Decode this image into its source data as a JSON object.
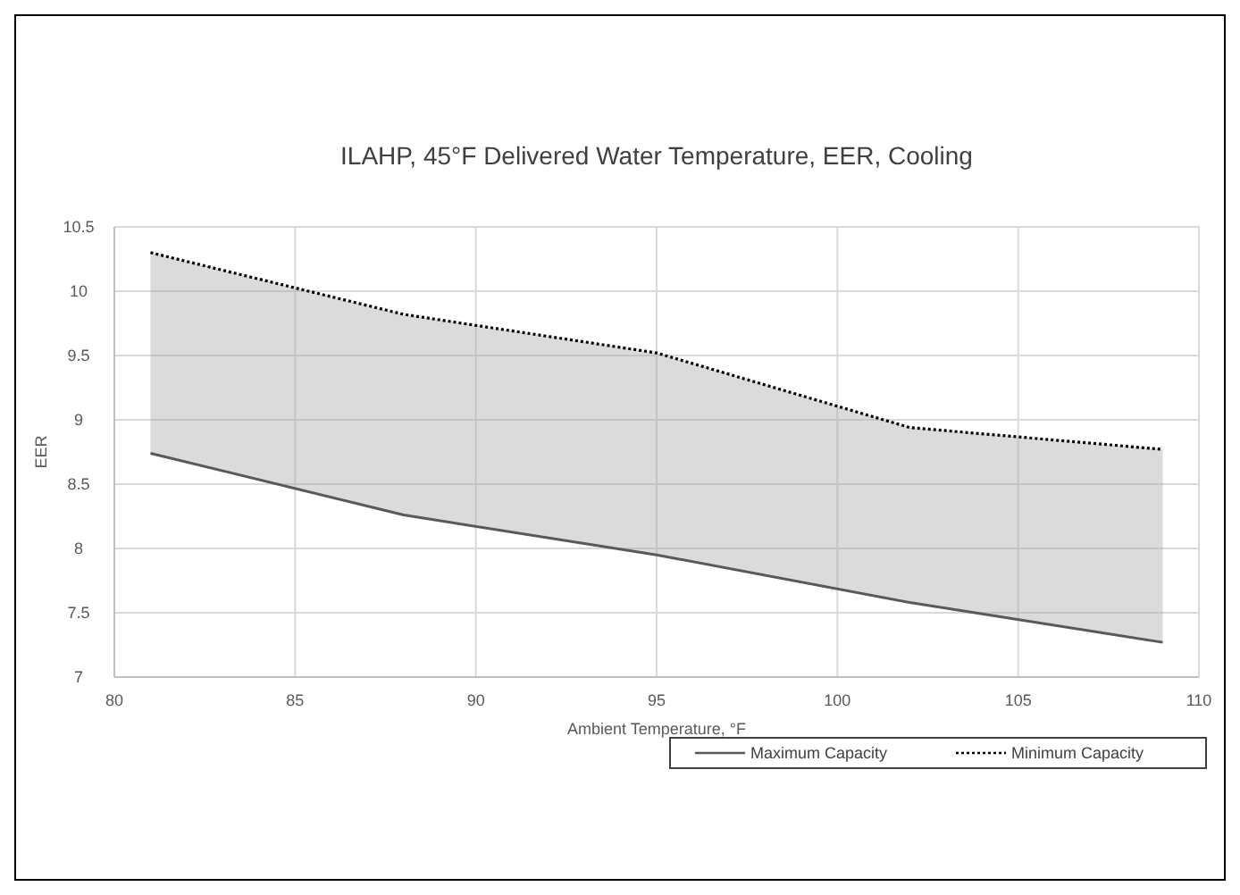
{
  "chart_data": {
    "type": "line",
    "title": "ILAHP, 45°F Delivered Water Temperature, EER, Cooling",
    "xlabel": "Ambient Temperature, °F",
    "ylabel": "EER",
    "x": [
      81,
      88,
      95,
      102,
      109
    ],
    "series": [
      {
        "name": "Maximum Capacity",
        "color": "#595959",
        "line_style": "solid",
        "values": [
          8.74,
          8.26,
          7.95,
          7.58,
          7.27
        ]
      },
      {
        "name": "Minimum Capacity",
        "color": "#000000",
        "line_style": "dotted",
        "values": [
          10.3,
          9.82,
          9.52,
          8.94,
          8.77
        ],
        "lower": [
          8.74,
          8.26,
          7.95,
          7.58,
          7.27
        ],
        "upper": [
          10.3,
          9.82,
          9.52,
          8.94,
          8.77
        ]
      }
    ],
    "xlim": [
      80,
      110
    ],
    "xticks": [
      80,
      85,
      90,
      95,
      100,
      105,
      110
    ],
    "ylim": [
      7,
      10.5
    ],
    "yticks": [
      7,
      7.5,
      8,
      8.5,
      9,
      9.5,
      10,
      10.5
    ],
    "grid": true,
    "legend": "bottom right"
  }
}
